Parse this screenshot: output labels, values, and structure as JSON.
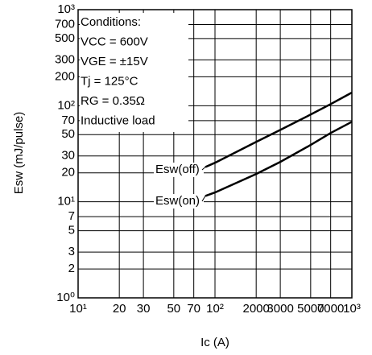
{
  "chart_data": {
    "type": "line",
    "xlabel": "Ic (A)",
    "ylabel": "Esw (mJ/pulse)",
    "x": [
      85,
      100,
      200,
      300,
      500,
      700,
      1000
    ],
    "series": [
      {
        "name": "Esw(off)",
        "color": "#000000",
        "values": [
          23,
          25.5,
          42,
          56,
          81,
          104,
          137
        ]
      },
      {
        "name": "Esw(on)",
        "color": "#000000",
        "values": [
          11.5,
          12.5,
          19.5,
          26,
          39,
          52,
          68
        ]
      }
    ],
    "xlim": [
      10,
      1000
    ],
    "ylim": [
      1,
      1000
    ],
    "xlog": true,
    "ylog": true,
    "grid": true,
    "xticks": [
      {
        "value": 10,
        "label": "10¹"
      },
      20,
      30,
      50,
      70,
      {
        "value": 100,
        "label": "10²"
      },
      2000,
      3000,
      5000,
      7000,
      {
        "value": 1000,
        "label": "10³"
      }
    ],
    "yticks": [
      {
        "value": 1,
        "label": "10⁰"
      },
      2,
      3,
      5,
      7,
      {
        "value": 10,
        "label": "10¹"
      },
      20,
      30,
      50,
      70,
      {
        "value": 100,
        "label": "10²"
      },
      200,
      300,
      500,
      700,
      {
        "value": 1000,
        "label": "10³"
      }
    ],
    "conditions": [
      "Conditions:",
      "VCC = 600V",
      "VGE = ±15V",
      "Tj = 125°C",
      "RG = 0.35Ω",
      "Inductive load"
    ]
  }
}
